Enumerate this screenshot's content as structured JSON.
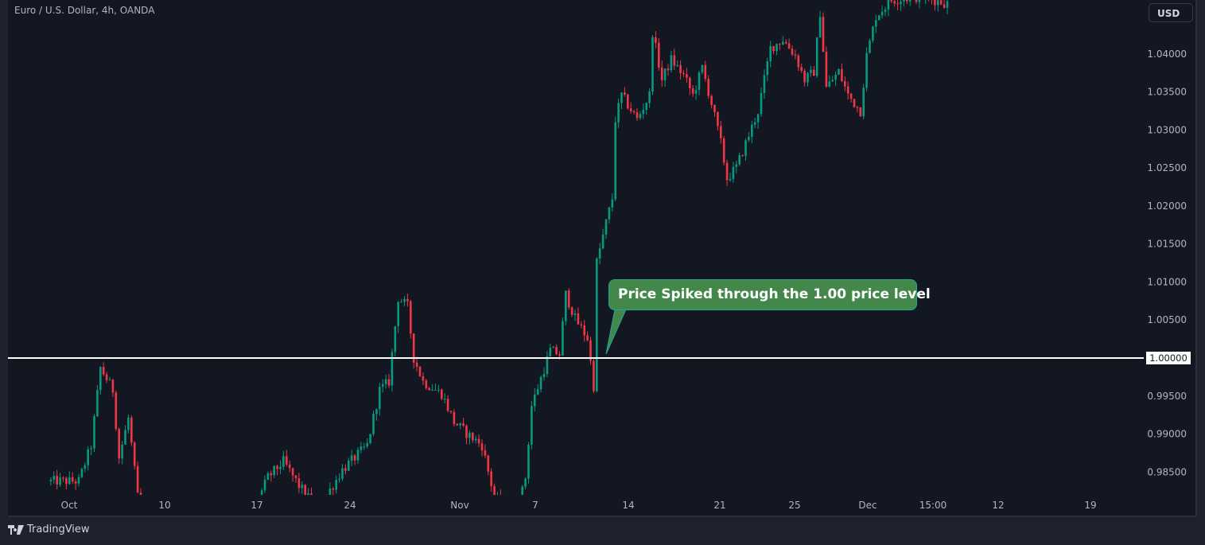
{
  "header": {
    "symbol_title": "Euro / U.S. Dollar, 4h, OANDA",
    "currency_button": "USD"
  },
  "footer": {
    "brand": "TradingView"
  },
  "annotation": {
    "callout_text": "Price Spiked through the 1.00 price level",
    "level_label": "1.00000"
  },
  "colors": {
    "up": "#089981",
    "down": "#f23645",
    "background": "#131722",
    "callout": "#43874a",
    "level_line": "#ffffff"
  },
  "chart_data": {
    "type": "candlestick",
    "title": "Euro / U.S. Dollar, 4h, OANDA",
    "ylabel": "USD",
    "ylim": [
      0.982,
      1.0471
    ],
    "y_ticks": [
      "1.04000",
      "1.03500",
      "1.03000",
      "1.02500",
      "1.02000",
      "1.01500",
      "1.01000",
      "1.00500",
      "0.99500",
      "0.99000",
      "0.98500"
    ],
    "y_tick_values": [
      1.04,
      1.035,
      1.03,
      1.025,
      1.02,
      1.015,
      1.01,
      1.005,
      0.995,
      0.99,
      0.985
    ],
    "x_ticks": [
      "Oct",
      "10",
      "17",
      "24",
      "Nov",
      "7",
      "14",
      "21",
      "25",
      "Dec",
      "15:00",
      "12",
      "19"
    ],
    "horizontal_level": 1.0,
    "close_path_anchors": [
      [
        0,
        0.9838
      ],
      [
        10,
        0.9838
      ],
      [
        14,
        0.9885
      ],
      [
        17,
        0.9987
      ],
      [
        21,
        0.9958
      ],
      [
        23,
        0.9869
      ],
      [
        26,
        0.9921
      ],
      [
        29,
        0.9817
      ],
      [
        36,
        0.976
      ],
      [
        62,
        0.976
      ],
      [
        71,
        0.9843
      ],
      [
        76,
        0.9864
      ],
      [
        81,
        0.9832
      ],
      [
        87,
        0.98
      ],
      [
        95,
        0.9853
      ],
      [
        103,
        0.9885
      ],
      [
        107,
        0.9958
      ],
      [
        110,
        0.9969
      ],
      [
        113,
        1.0079
      ],
      [
        116,
        1.0068
      ],
      [
        118,
        1.0
      ],
      [
        121,
        0.9969
      ],
      [
        127,
        0.9953
      ],
      [
        131,
        0.9916
      ],
      [
        135,
        0.9901
      ],
      [
        140,
        0.9885
      ],
      [
        144,
        0.9817
      ],
      [
        151,
        0.979
      ],
      [
        154,
        0.9843
      ],
      [
        156,
        0.9937
      ],
      [
        162,
        1.001
      ],
      [
        165,
        1.0005
      ],
      [
        167,
        1.0084
      ],
      [
        170,
        1.0052
      ],
      [
        174,
        1.0026
      ],
      [
        176,
        0.9963
      ],
      [
        177,
        1.0126
      ],
      [
        180,
        1.0178
      ],
      [
        182,
        1.021
      ],
      [
        183,
        1.0314
      ],
      [
        185,
        1.0346
      ],
      [
        190,
        1.0314
      ],
      [
        194,
        1.0346
      ],
      [
        195,
        1.0429
      ],
      [
        198,
        1.0366
      ],
      [
        201,
        1.0393
      ],
      [
        205,
        1.0372
      ],
      [
        208,
        1.0346
      ],
      [
        211,
        1.0382
      ],
      [
        214,
        1.0335
      ],
      [
        217,
        1.0283
      ],
      [
        219,
        1.0236
      ],
      [
        222,
        1.0251
      ],
      [
        226,
        1.0293
      ],
      [
        229,
        1.0325
      ],
      [
        233,
        1.0408
      ],
      [
        237,
        1.0419
      ],
      [
        241,
        1.0398
      ],
      [
        244,
        1.0366
      ],
      [
        247,
        1.0377
      ],
      [
        249,
        1.0455
      ],
      [
        251,
        1.0356
      ],
      [
        255,
        1.0377
      ],
      [
        258,
        1.0346
      ],
      [
        262,
        1.0325
      ],
      [
        264,
        1.0398
      ],
      [
        267,
        1.045
      ],
      [
        272,
        1.0471
      ],
      [
        282,
        1.0476
      ],
      [
        290,
        1.0466
      ]
    ]
  }
}
